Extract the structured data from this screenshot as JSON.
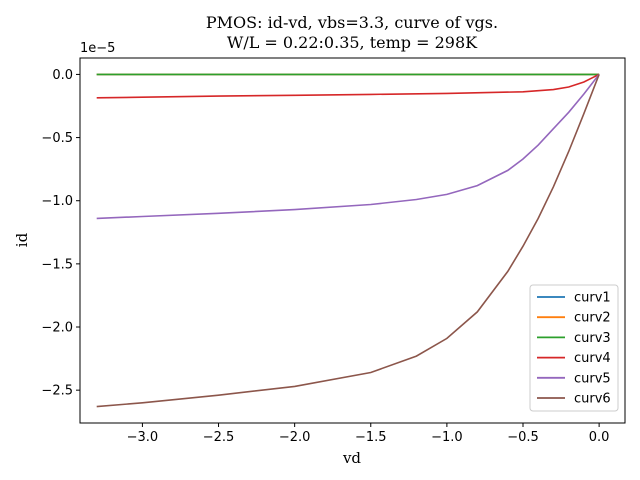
{
  "chart_data": {
    "type": "line",
    "title_line1": "PMOS: id-vd, vbs=3.3, curve of vgs.",
    "title_line2": "W/L = 0.22:0.35, temp = 298K",
    "xlabel": "vd",
    "ylabel": "id",
    "y_offset_label": "1e−5",
    "xlim": [
      -3.41,
      0.17
    ],
    "ylim": [
      -2.76,
      0.13
    ],
    "y_scale": 1e-05,
    "x_ticks": [
      {
        "value": -3.0,
        "label": "−3.0"
      },
      {
        "value": -2.5,
        "label": "−2.5"
      },
      {
        "value": -2.0,
        "label": "−2.0"
      },
      {
        "value": -1.5,
        "label": "−1.5"
      },
      {
        "value": -1.0,
        "label": "−1.0"
      },
      {
        "value": -0.5,
        "label": "−0.5"
      },
      {
        "value": 0.0,
        "label": "0.0"
      }
    ],
    "y_ticks": [
      {
        "value": 0.0,
        "label": "0.0"
      },
      {
        "value": -0.5,
        "label": "−0.5"
      },
      {
        "value": -1.0,
        "label": "−1.0"
      },
      {
        "value": -1.5,
        "label": "−1.5"
      },
      {
        "value": -2.0,
        "label": "−2.0"
      },
      {
        "value": -2.5,
        "label": "−2.5"
      }
    ],
    "grid": false,
    "legend_position": "lower-right",
    "series": [
      {
        "name": "curv1",
        "color": "#1f77b4",
        "x": [
          -3.3,
          -2.5,
          -1.5,
          -0.5,
          0.0
        ],
        "y": [
          0.0,
          0.0,
          0.0,
          0.0,
          0.0
        ]
      },
      {
        "name": "curv2",
        "color": "#ff7f0e",
        "x": [
          -3.3,
          -2.5,
          -1.5,
          -0.5,
          0.0
        ],
        "y": [
          0.0,
          0.0,
          0.0,
          0.0,
          0.0
        ]
      },
      {
        "name": "curv3",
        "color": "#2ca02c",
        "x": [
          -3.3,
          -2.5,
          -1.5,
          -0.5,
          0.0
        ],
        "y": [
          0.0,
          0.0,
          0.0,
          0.0,
          0.0
        ]
      },
      {
        "name": "curv4",
        "color": "#d62728",
        "x": [
          -3.3,
          -3.0,
          -2.5,
          -2.0,
          -1.5,
          -1.0,
          -0.5,
          -0.3,
          -0.2,
          -0.1,
          -0.05,
          0.0
        ],
        "y": [
          -0.185,
          -0.18,
          -0.172,
          -0.165,
          -0.158,
          -0.15,
          -0.138,
          -0.12,
          -0.1,
          -0.06,
          -0.03,
          0.0
        ]
      },
      {
        "name": "curv5",
        "color": "#9467bd",
        "x": [
          -3.3,
          -3.0,
          -2.5,
          -2.0,
          -1.5,
          -1.2,
          -1.0,
          -0.8,
          -0.6,
          -0.5,
          -0.4,
          -0.3,
          -0.2,
          -0.1,
          0.0
        ],
        "y": [
          -1.14,
          -1.125,
          -1.1,
          -1.07,
          -1.03,
          -0.99,
          -0.95,
          -0.88,
          -0.76,
          -0.67,
          -0.56,
          -0.43,
          -0.3,
          -0.155,
          0.0
        ]
      },
      {
        "name": "curv6",
        "color": "#8c564b",
        "x": [
          -3.3,
          -3.0,
          -2.5,
          -2.0,
          -1.5,
          -1.2,
          -1.0,
          -0.8,
          -0.6,
          -0.5,
          -0.4,
          -0.3,
          -0.2,
          -0.1,
          0.0
        ],
        "y": [
          -2.63,
          -2.6,
          -2.54,
          -2.47,
          -2.36,
          -2.23,
          -2.09,
          -1.88,
          -1.56,
          -1.36,
          -1.14,
          -0.89,
          -0.61,
          -0.31,
          0.0
        ]
      }
    ]
  }
}
